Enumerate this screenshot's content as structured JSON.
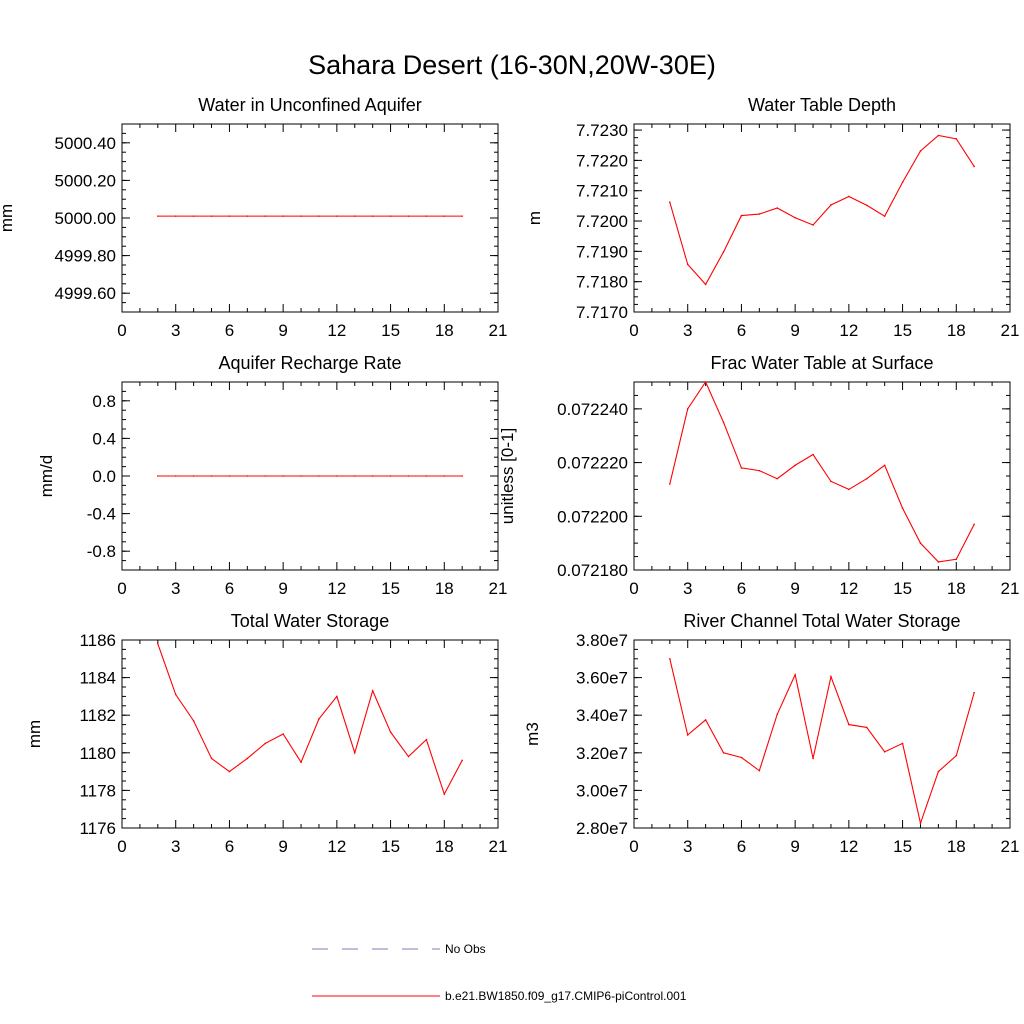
{
  "figure": {
    "title": "Sahara Desert (16-30N,20W-30E)"
  },
  "legend": {
    "items": [
      {
        "label": "No Obs",
        "color": "#7a82b8",
        "style": "dashed"
      },
      {
        "label": "b.e21.BW1850.f09_g17.CMIP6-piControl.001",
        "color": "#ff0000",
        "style": "solid"
      }
    ]
  },
  "chart_data": [
    {
      "type": "line",
      "title": "Water in Unconfined Aquifer",
      "xlabel": "",
      "ylabel": "mm",
      "xlim": [
        0,
        21
      ],
      "ylim": [
        4999.5,
        5000.5
      ],
      "xticks": [
        0,
        3,
        6,
        9,
        12,
        15,
        18,
        21
      ],
      "xtick_labels": [
        "0",
        "3",
        "6",
        "9",
        "12",
        "15",
        "18",
        "21"
      ],
      "yticks": [
        4999.6,
        4999.8,
        5000.0,
        5000.2,
        5000.4
      ],
      "ytick_labels": [
        "4999.60",
        "4999.80",
        "5000.00",
        "5000.20",
        "5000.40"
      ],
      "grid": false,
      "series": [
        {
          "color": "#ff0000",
          "x": [
            2,
            3,
            4,
            5,
            6,
            7,
            8,
            9,
            10,
            11,
            12,
            13,
            14,
            15,
            16,
            17,
            18,
            19
          ],
          "y": [
            5000.01,
            5000.01,
            5000.01,
            5000.01,
            5000.01,
            5000.01,
            5000.01,
            5000.01,
            5000.01,
            5000.01,
            5000.01,
            5000.01,
            5000.01,
            5000.01,
            5000.01,
            5000.01,
            5000.01,
            5000.01
          ]
        }
      ]
    },
    {
      "type": "line",
      "title": "Water Table Depth",
      "xlabel": "",
      "ylabel": "m",
      "xlim": [
        0,
        21
      ],
      "ylim": [
        7.717,
        7.7232
      ],
      "xticks": [
        0,
        3,
        6,
        9,
        12,
        15,
        18,
        21
      ],
      "xtick_labels": [
        "0",
        "3",
        "6",
        "9",
        "12",
        "15",
        "18",
        "21"
      ],
      "yticks": [
        7.717,
        7.718,
        7.719,
        7.72,
        7.721,
        7.722,
        7.723
      ],
      "ytick_labels": [
        "7.7170",
        "7.7180",
        "7.7190",
        "7.7200",
        "7.7210",
        "7.7220",
        "7.7230"
      ],
      "grid": false,
      "series": [
        {
          "color": "#ff0000",
          "x": [
            2,
            3,
            4,
            5,
            6,
            7,
            8,
            9,
            10,
            11,
            12,
            13,
            14,
            15,
            16,
            17,
            18,
            19
          ],
          "y": [
            7.72062,
            7.71857,
            7.71791,
            7.71898,
            7.72018,
            7.72023,
            7.72043,
            7.72011,
            7.71987,
            7.72053,
            7.72081,
            7.72052,
            7.72016,
            7.72128,
            7.72231,
            7.72282,
            7.72271,
            7.7218
          ]
        }
      ]
    },
    {
      "type": "line",
      "title": "Aquifer Recharge Rate",
      "xlabel": "",
      "ylabel": "mm/d",
      "xlim": [
        0,
        21
      ],
      "ylim": [
        -1.0,
        1.0
      ],
      "xticks": [
        0,
        3,
        6,
        9,
        12,
        15,
        18,
        21
      ],
      "xtick_labels": [
        "0",
        "3",
        "6",
        "9",
        "12",
        "15",
        "18",
        "21"
      ],
      "yticks": [
        -0.8,
        -0.4,
        0.0,
        0.4,
        0.8
      ],
      "ytick_labels": [
        "-0.8",
        "-0.4",
        "0.0",
        "0.4",
        "0.8"
      ],
      "grid": false,
      "series": [
        {
          "color": "#ff0000",
          "x": [
            2,
            3,
            4,
            5,
            6,
            7,
            8,
            9,
            10,
            11,
            12,
            13,
            14,
            15,
            16,
            17,
            18,
            19
          ],
          "y": [
            0,
            0,
            0,
            0,
            0,
            0,
            0,
            0,
            0,
            0,
            0,
            0,
            0,
            0,
            0,
            0,
            0,
            0
          ]
        }
      ]
    },
    {
      "type": "line",
      "title": "Frac Water Table at Surface",
      "xlabel": "",
      "ylabel": "unitless [0-1]",
      "xlim": [
        0,
        21
      ],
      "ylim": [
        0.07218,
        0.07225
      ],
      "xticks": [
        0,
        3,
        6,
        9,
        12,
        15,
        18,
        21
      ],
      "xtick_labels": [
        "0",
        "3",
        "6",
        "9",
        "12",
        "15",
        "18",
        "21"
      ],
      "yticks": [
        0.07218,
        0.0722,
        0.07222,
        0.07224
      ],
      "ytick_labels": [
        "0.072180",
        "0.072200",
        "0.072220",
        "0.072240"
      ],
      "grid": false,
      "series": [
        {
          "color": "#ff0000",
          "x": [
            2,
            3,
            4,
            5,
            6,
            7,
            8,
            9,
            10,
            11,
            12,
            13,
            14,
            15,
            16,
            17,
            18,
            19
          ],
          "y": [
            0.072212,
            0.07224,
            0.07225,
            0.072235,
            0.072218,
            0.072217,
            0.072214,
            0.072219,
            0.072223,
            0.072213,
            0.07221,
            0.072214,
            0.072219,
            0.072203,
            0.07219,
            0.072183,
            0.072184,
            0.072197
          ]
        }
      ]
    },
    {
      "type": "line",
      "title": "Total Water Storage",
      "xlabel": "",
      "ylabel": "mm",
      "xlim": [
        0,
        21
      ],
      "ylim": [
        1176,
        1186
      ],
      "xticks": [
        0,
        3,
        6,
        9,
        12,
        15,
        18,
        21
      ],
      "xtick_labels": [
        "0",
        "3",
        "6",
        "9",
        "12",
        "15",
        "18",
        "21"
      ],
      "yticks": [
        1176,
        1178,
        1180,
        1182,
        1184,
        1186
      ],
      "ytick_labels": [
        "1176",
        "1178",
        "1180",
        "1182",
        "1184",
        "1186"
      ],
      "grid": false,
      "series": [
        {
          "color": "#ff0000",
          "x": [
            2,
            3,
            4,
            5,
            6,
            7,
            8,
            9,
            10,
            11,
            12,
            13,
            14,
            15,
            16,
            17,
            18,
            19
          ],
          "y": [
            1185.8,
            1183.1,
            1181.7,
            1179.7,
            1179.0,
            1179.7,
            1180.5,
            1181.0,
            1179.5,
            1181.8,
            1183.0,
            1180.0,
            1183.3,
            1181.1,
            1179.8,
            1180.7,
            1177.8,
            1179.6
          ]
        }
      ]
    },
    {
      "type": "line",
      "title": "River Channel Total Water Storage",
      "xlabel": "",
      "ylabel": "m3",
      "xlim": [
        0,
        21
      ],
      "ylim": [
        28000000,
        38000000
      ],
      "xticks": [
        0,
        3,
        6,
        9,
        12,
        15,
        18,
        21
      ],
      "xtick_labels": [
        "0",
        "3",
        "6",
        "9",
        "12",
        "15",
        "18",
        "21"
      ],
      "yticks": [
        28000000,
        30000000,
        32000000,
        34000000,
        36000000,
        38000000
      ],
      "ytick_labels": [
        "2.80e7",
        "3.00e7",
        "3.20e7",
        "3.40e7",
        "3.60e7",
        "3.80e7"
      ],
      "grid": false,
      "series": [
        {
          "color": "#ff0000",
          "x": [
            2,
            3,
            4,
            5,
            6,
            7,
            8,
            9,
            10,
            11,
            12,
            13,
            14,
            15,
            16,
            17,
            18,
            19
          ],
          "y": [
            37000000,
            32950000,
            33750000,
            32000000,
            31750000,
            31050000,
            34050000,
            36150000,
            31700000,
            36050000,
            33500000,
            33350000,
            32050000,
            32500000,
            28250000,
            31000000,
            31850000,
            35200000
          ]
        }
      ]
    }
  ]
}
